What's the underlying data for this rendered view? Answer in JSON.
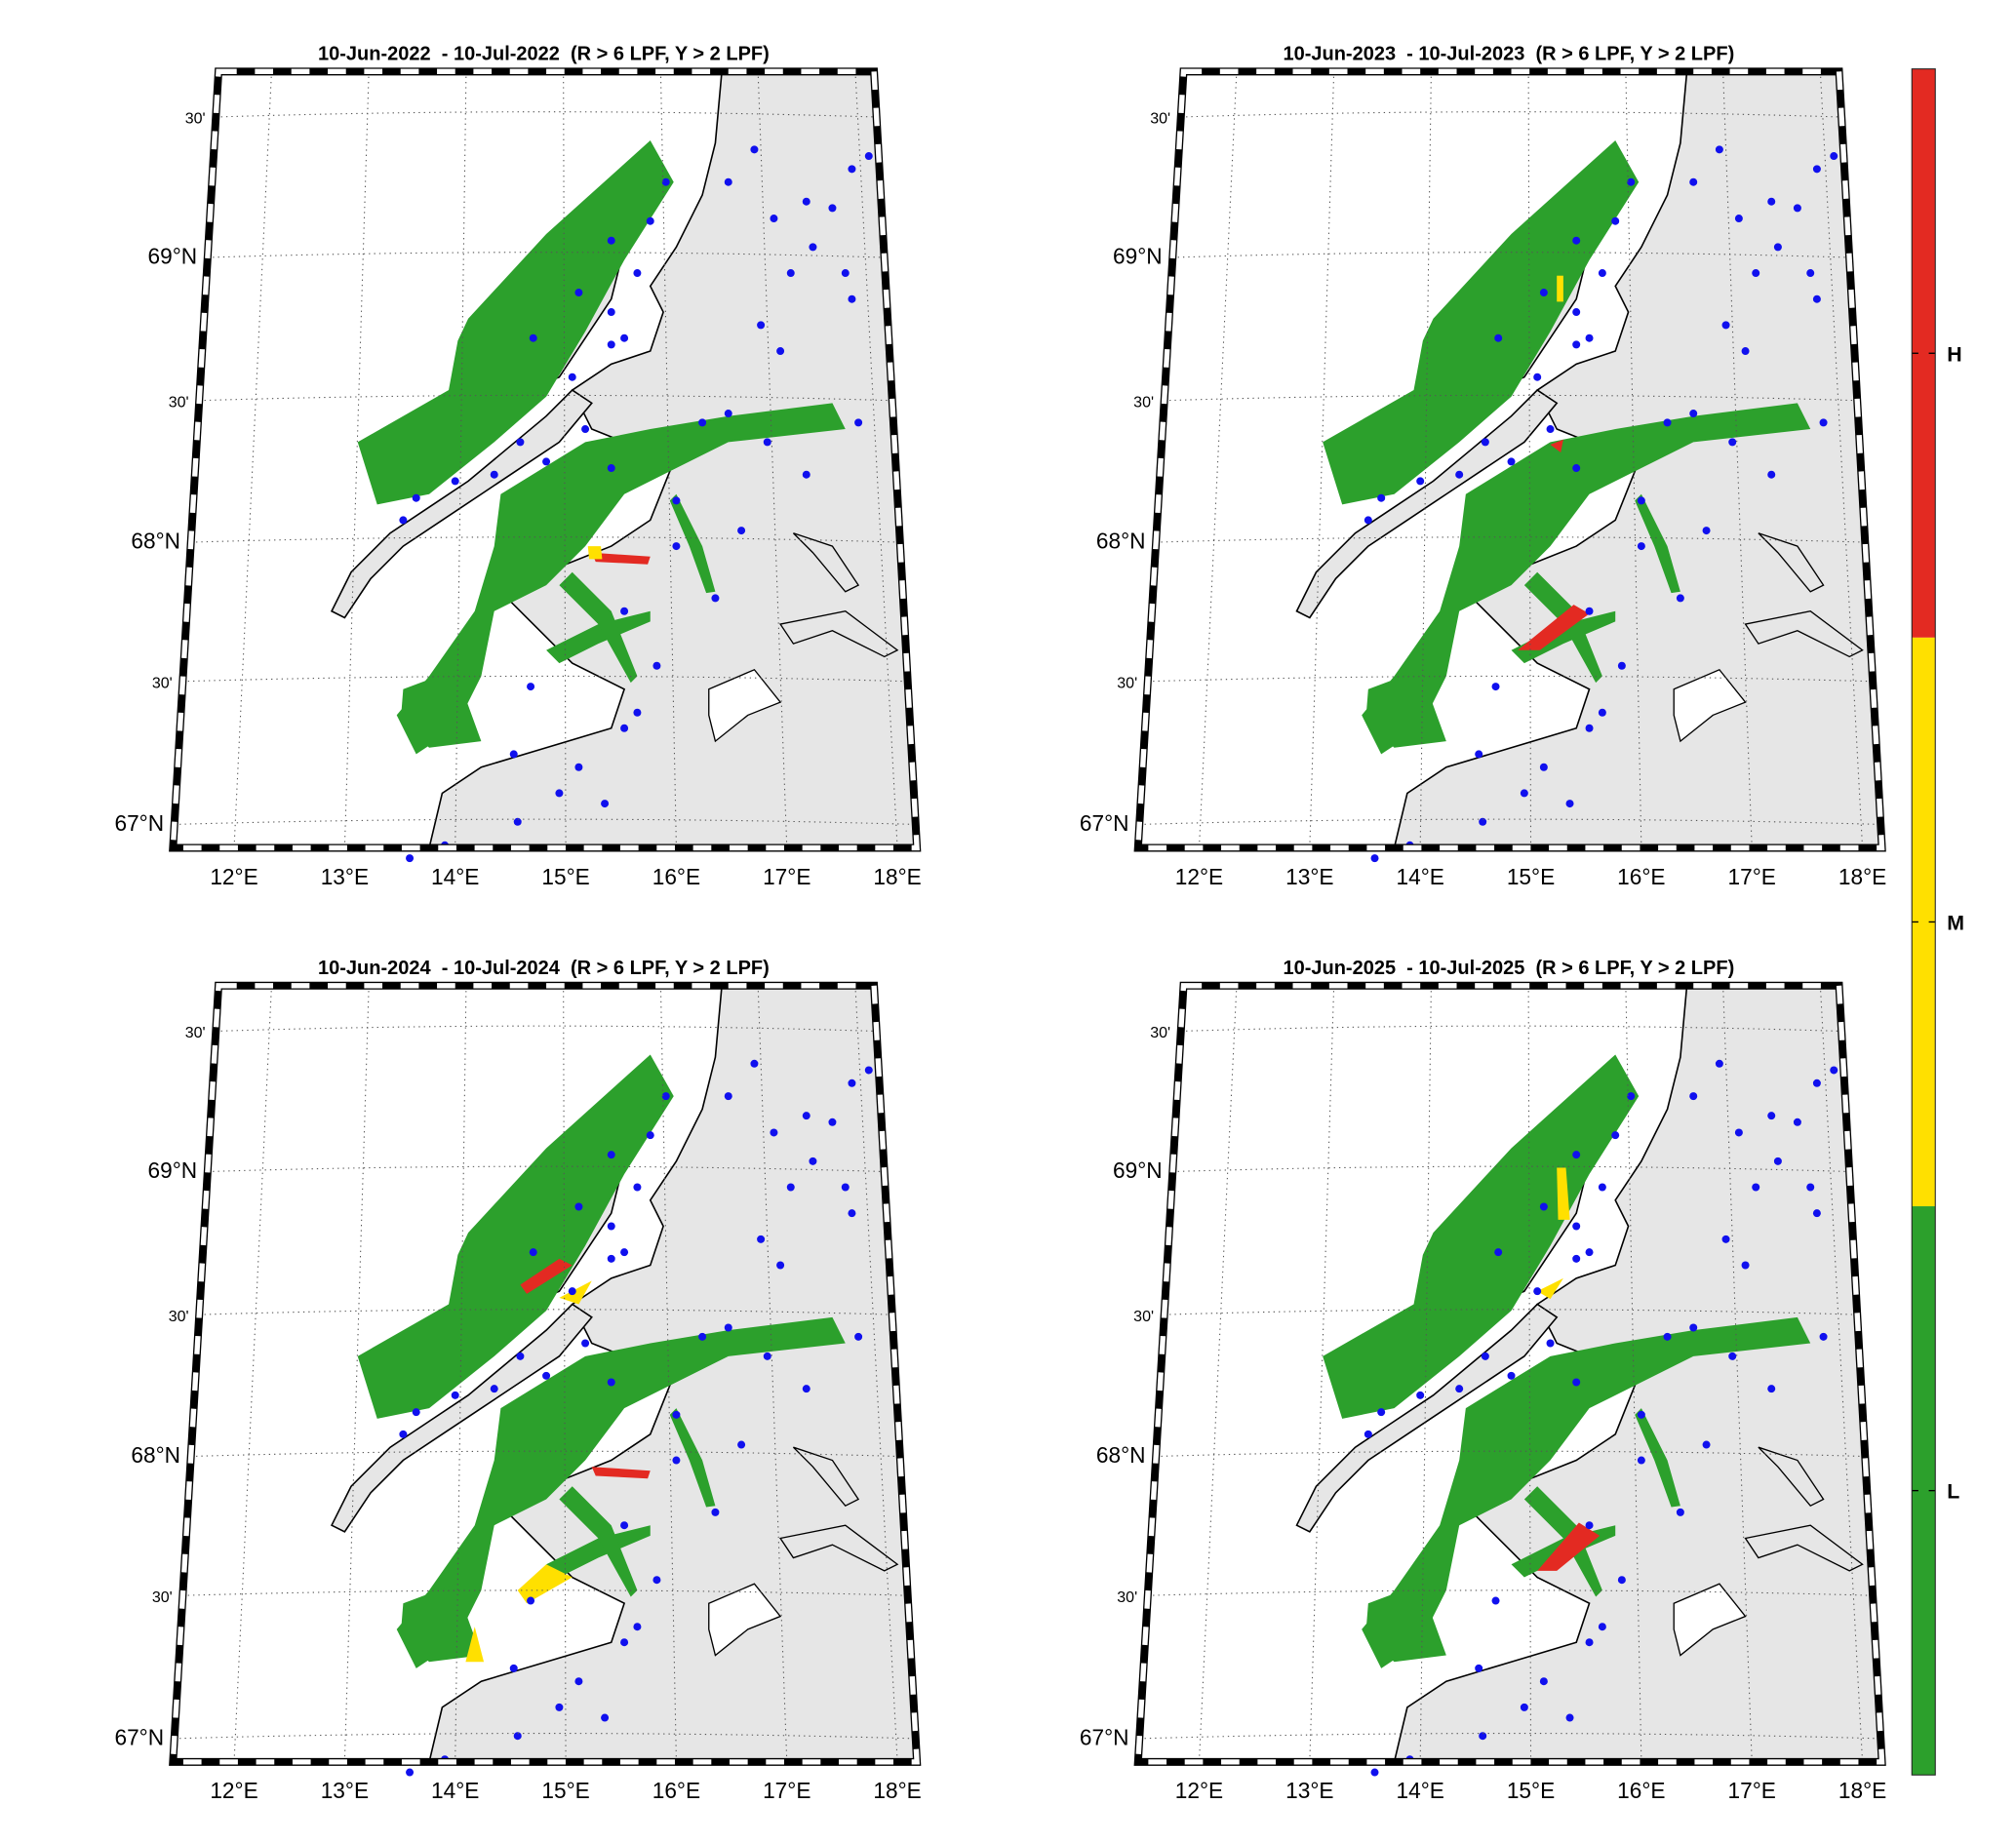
{
  "panels": [
    {
      "title": "10-Jun-2022  - 10-Jul-2022  (R > 6 LPF, Y > 2 LPF)",
      "lat_labels": [
        "30'",
        "69°N",
        "30'",
        "68°N",
        "30'",
        "67°N"
      ],
      "lon_labels": [
        "12°E",
        "13°E",
        "14°E",
        "15°E",
        "16°E",
        "17°E",
        "18°E"
      ]
    },
    {
      "title": "10-Jun-2023  - 10-Jul-2023  (R > 6 LPF, Y > 2 LPF)",
      "lat_labels": [
        "30'",
        "69°N",
        "30'",
        "68°N",
        "30'",
        "67°N"
      ],
      "lon_labels": [
        "12°E",
        "13°E",
        "14°E",
        "15°E",
        "16°E",
        "17°E",
        "18°E"
      ]
    },
    {
      "title": "10-Jun-2024  - 10-Jul-2024  (R > 6 LPF, Y > 2 LPF)",
      "lat_labels": [
        "30'",
        "69°N",
        "30'",
        "68°N",
        "30'",
        "67°N"
      ],
      "lon_labels": [
        "12°E",
        "13°E",
        "14°E",
        "15°E",
        "16°E",
        "17°E",
        "18°E"
      ]
    },
    {
      "title": "10-Jun-2025  - 10-Jul-2025  (R > 6 LPF, Y > 2 LPF)",
      "lat_labels": [
        "30'",
        "69°N",
        "30'",
        "68°N",
        "30'",
        "67°N"
      ],
      "lon_labels": [
        "12°E",
        "13°E",
        "14°E",
        "15°E",
        "16°E",
        "17°E",
        "18°E"
      ]
    }
  ],
  "colorbar": {
    "labels": [
      "H",
      "M",
      "L"
    ],
    "colors": [
      "#e32a22",
      "#ffe000",
      "#2ca02c"
    ]
  }
}
